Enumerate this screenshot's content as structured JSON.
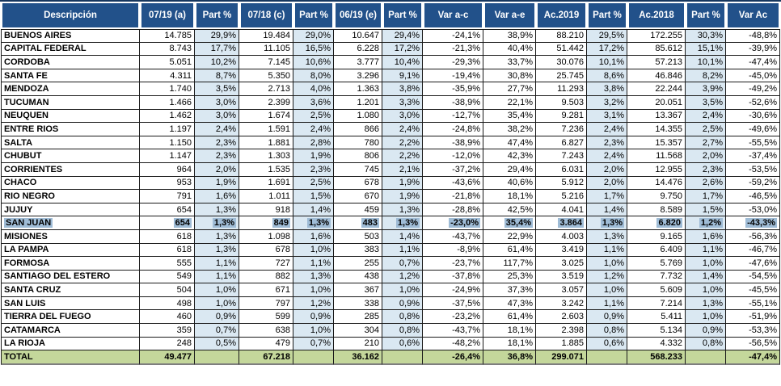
{
  "colors": {
    "header_bg": "#22518a",
    "header_text": "#ffffff",
    "part_percent_column_bg": "#dae8f2",
    "selected_row_highlight": "#9fbcd6",
    "total_row_bg": "#c4d79b",
    "gridline": "#1a1a1a"
  },
  "table": {
    "columns": [
      "Descripción",
      "07/19 (a)",
      "Part %",
      "07/18 (c)",
      "Part %",
      "06/19 (e)",
      "Part %",
      "Var a-c",
      "Var a-e",
      "Ac.2019",
      "Part %",
      "Ac.2018",
      "Part %",
      "Var Ac"
    ],
    "blue_value_columns": [
      1,
      3,
      5,
      9,
      11
    ],
    "rows": [
      {
        "label": "BUENOS AIRES",
        "highlight": false,
        "values": [
          "14.785",
          "29,9%",
          "19.484",
          "29,0%",
          "10.647",
          "29,4%",
          "-24,1%",
          "38,9%",
          "88.210",
          "29,5%",
          "172.255",
          "30,3%",
          "-48,8%"
        ]
      },
      {
        "label": "CAPITAL FEDERAL",
        "highlight": false,
        "values": [
          "8.743",
          "17,7%",
          "11.105",
          "16,5%",
          "6.228",
          "17,2%",
          "-21,3%",
          "40,4%",
          "51.442",
          "17,2%",
          "85.612",
          "15,1%",
          "-39,9%"
        ]
      },
      {
        "label": "CORDOBA",
        "highlight": false,
        "values": [
          "5.051",
          "10,2%",
          "7.145",
          "10,6%",
          "3.777",
          "10,4%",
          "-29,3%",
          "33,7%",
          "30.076",
          "10,1%",
          "57.213",
          "10,1%",
          "-47,4%"
        ]
      },
      {
        "label": "SANTA FE",
        "highlight": false,
        "values": [
          "4.311",
          "8,7%",
          "5.350",
          "8,0%",
          "3.296",
          "9,1%",
          "-19,4%",
          "30,8%",
          "25.745",
          "8,6%",
          "46.846",
          "8,2%",
          "-45,0%"
        ]
      },
      {
        "label": "MENDOZA",
        "highlight": false,
        "values": [
          "1.740",
          "3,5%",
          "2.713",
          "4,0%",
          "1.363",
          "3,8%",
          "-35,9%",
          "27,7%",
          "11.293",
          "3,8%",
          "22.244",
          "3,9%",
          "-49,2%"
        ]
      },
      {
        "label": "TUCUMAN",
        "highlight": false,
        "values": [
          "1.466",
          "3,0%",
          "2.399",
          "3,6%",
          "1.201",
          "3,3%",
          "-38,9%",
          "22,1%",
          "9.503",
          "3,2%",
          "20.051",
          "3,5%",
          "-52,6%"
        ]
      },
      {
        "label": "NEUQUEN",
        "highlight": false,
        "values": [
          "1.462",
          "3,0%",
          "1.674",
          "2,5%",
          "1.080",
          "3,0%",
          "-12,7%",
          "35,4%",
          "9.281",
          "3,1%",
          "13.367",
          "2,4%",
          "-30,6%"
        ]
      },
      {
        "label": "ENTRE RIOS",
        "highlight": false,
        "values": [
          "1.197",
          "2,4%",
          "1.591",
          "2,4%",
          "866",
          "2,4%",
          "-24,8%",
          "38,2%",
          "7.236",
          "2,4%",
          "14.355",
          "2,5%",
          "-49,6%"
        ]
      },
      {
        "label": "SALTA",
        "highlight": false,
        "values": [
          "1.150",
          "2,3%",
          "1.881",
          "2,8%",
          "780",
          "2,2%",
          "-38,9%",
          "47,4%",
          "6.827",
          "2,3%",
          "15.357",
          "2,7%",
          "-55,5%"
        ]
      },
      {
        "label": "CHUBUT",
        "highlight": false,
        "values": [
          "1.147",
          "2,3%",
          "1.303",
          "1,9%",
          "806",
          "2,2%",
          "-12,0%",
          "42,3%",
          "7.243",
          "2,4%",
          "11.568",
          "2,0%",
          "-37,4%"
        ]
      },
      {
        "label": "CORRIENTES",
        "highlight": false,
        "values": [
          "964",
          "2,0%",
          "1.535",
          "2,3%",
          "745",
          "2,1%",
          "-37,2%",
          "29,4%",
          "6.031",
          "2,0%",
          "12.955",
          "2,3%",
          "-53,5%"
        ]
      },
      {
        "label": "CHACO",
        "highlight": false,
        "values": [
          "953",
          "1,9%",
          "1.691",
          "2,5%",
          "678",
          "1,9%",
          "-43,6%",
          "40,6%",
          "5.912",
          "2,0%",
          "14.476",
          "2,6%",
          "-59,2%"
        ]
      },
      {
        "label": "RIO NEGRO",
        "highlight": false,
        "values": [
          "791",
          "1,6%",
          "1.011",
          "1,5%",
          "670",
          "1,9%",
          "-21,8%",
          "18,1%",
          "5.216",
          "1,7%",
          "9.750",
          "1,7%",
          "-46,5%"
        ]
      },
      {
        "label": "JUJUY",
        "highlight": false,
        "values": [
          "654",
          "1,3%",
          "918",
          "1,4%",
          "459",
          "1,3%",
          "-28,8%",
          "42,5%",
          "4.041",
          "1,4%",
          "8.589",
          "1,5%",
          "-53,0%"
        ]
      },
      {
        "label": "SAN JUAN",
        "highlight": true,
        "values": [
          "654",
          "1,3%",
          "849",
          "1,3%",
          "483",
          "1,3%",
          "-23,0%",
          "35,4%",
          "3.864",
          "1,3%",
          "6.820",
          "1,2%",
          "-43,3%"
        ]
      },
      {
        "label": "MISIONES",
        "highlight": false,
        "values": [
          "618",
          "1,3%",
          "1.098",
          "1,6%",
          "503",
          "1,4%",
          "-43,7%",
          "22,9%",
          "4.003",
          "1,3%",
          "9.165",
          "1,6%",
          "-56,3%"
        ]
      },
      {
        "label": "LA PAMPA",
        "highlight": false,
        "values": [
          "618",
          "1,3%",
          "678",
          "1,0%",
          "383",
          "1,1%",
          "-8,9%",
          "61,4%",
          "3.419",
          "1,1%",
          "6.409",
          "1,1%",
          "-46,7%"
        ]
      },
      {
        "label": "FORMOSA",
        "highlight": false,
        "values": [
          "555",
          "1,1%",
          "727",
          "1,1%",
          "255",
          "0,7%",
          "-23,7%",
          "117,7%",
          "3.025",
          "1,0%",
          "5.769",
          "1,0%",
          "-47,6%"
        ]
      },
      {
        "label": "SANTIAGO DEL ESTERO",
        "highlight": false,
        "values": [
          "549",
          "1,1%",
          "882",
          "1,3%",
          "438",
          "1,2%",
          "-37,8%",
          "25,3%",
          "3.519",
          "1,2%",
          "7.732",
          "1,4%",
          "-54,5%"
        ]
      },
      {
        "label": "SANTA CRUZ",
        "highlight": false,
        "values": [
          "504",
          "1,0%",
          "671",
          "1,0%",
          "367",
          "1,0%",
          "-24,9%",
          "37,3%",
          "3.057",
          "1,0%",
          "5.609",
          "1,0%",
          "-45,5%"
        ]
      },
      {
        "label": "SAN LUIS",
        "highlight": false,
        "values": [
          "498",
          "1,0%",
          "797",
          "1,2%",
          "338",
          "0,9%",
          "-37,5%",
          "47,3%",
          "3.242",
          "1,1%",
          "7.214",
          "1,3%",
          "-55,1%"
        ]
      },
      {
        "label": "TIERRA DEL FUEGO",
        "highlight": false,
        "values": [
          "460",
          "0,9%",
          "599",
          "0,9%",
          "285",
          "0,8%",
          "-23,2%",
          "61,4%",
          "2.603",
          "0,9%",
          "5.411",
          "1,0%",
          "-51,9%"
        ]
      },
      {
        "label": "CATAMARCA",
        "highlight": false,
        "values": [
          "359",
          "0,7%",
          "638",
          "1,0%",
          "304",
          "0,8%",
          "-43,7%",
          "18,1%",
          "2.398",
          "0,8%",
          "5.134",
          "0,9%",
          "-53,3%"
        ]
      },
      {
        "label": "LA RIOJA",
        "highlight": false,
        "values": [
          "248",
          "0,5%",
          "479",
          "0,7%",
          "210",
          "0,6%",
          "-48,2%",
          "18,1%",
          "1.885",
          "0,6%",
          "4.332",
          "0,8%",
          "-56,5%"
        ]
      }
    ],
    "total_row": {
      "label": "TOTAL",
      "values": [
        "49.477",
        "",
        "67.218",
        "",
        "36.162",
        "",
        "-26,4%",
        "36,8%",
        "299.071",
        "",
        "568.233",
        "",
        "-47,4%"
      ]
    }
  }
}
